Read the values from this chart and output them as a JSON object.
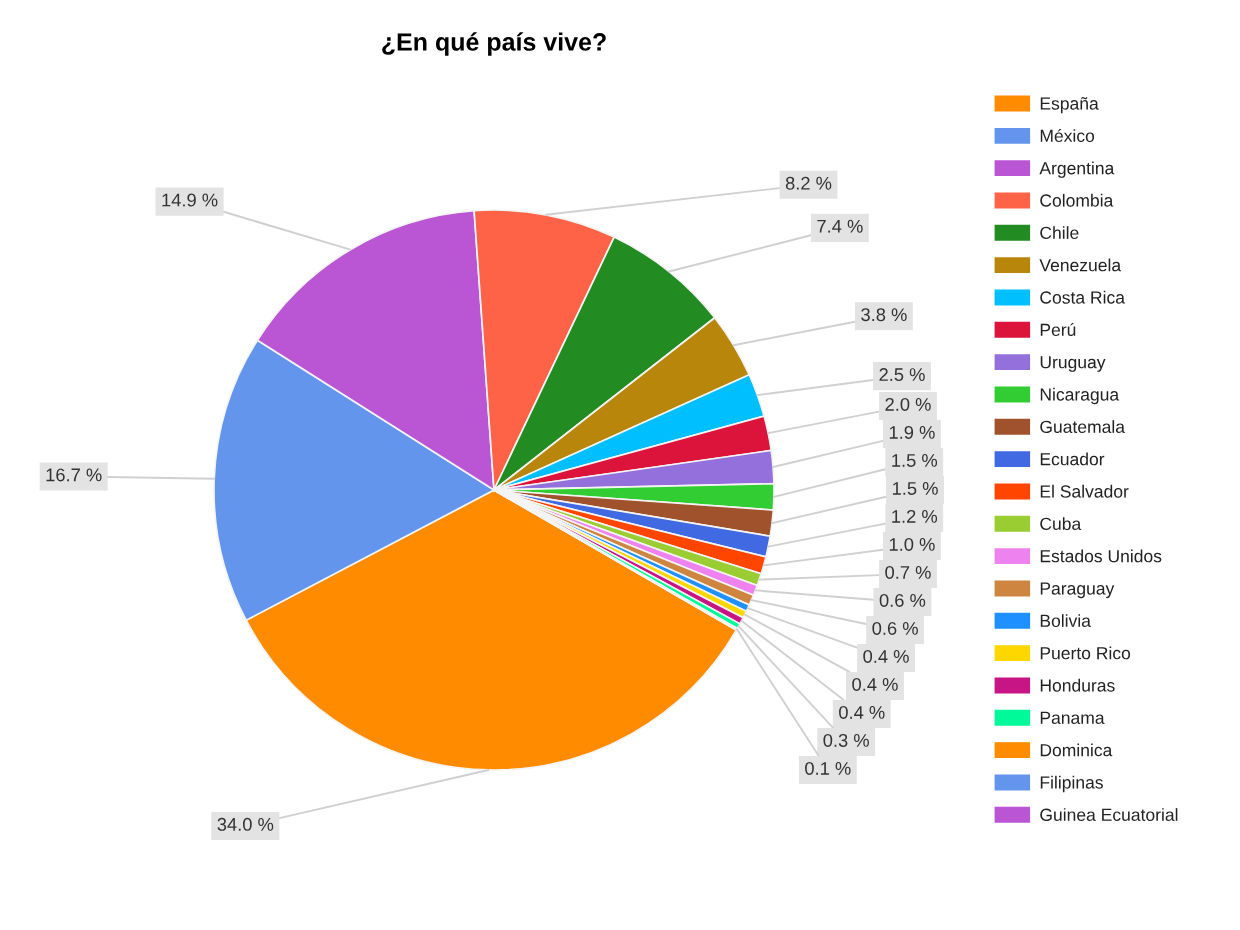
{
  "chart_data": {
    "type": "pie",
    "title": "¿En qué país vive?",
    "categories": [
      "España",
      "México",
      "Argentina",
      "Colombia",
      "Chile",
      "Venezuela",
      "Costa Rica",
      "Perú",
      "Uruguay",
      "Nicaragua",
      "Guatemala",
      "Ecuador",
      "El Salvador",
      "Cuba",
      "Estados Unidos",
      "Paraguay",
      "Bolivia",
      "Puerto Rico",
      "Honduras",
      "Panama",
      "Dominica",
      "Filipinas",
      "Guinea Ecuatorial"
    ],
    "values": [
      34.0,
      16.7,
      14.9,
      8.2,
      7.4,
      3.8,
      2.5,
      2.0,
      1.9,
      1.5,
      1.5,
      1.2,
      1.0,
      0.7,
      0.6,
      0.6,
      0.4,
      0.4,
      0.4,
      0.3,
      0.1,
      0,
      0
    ],
    "colors": [
      "#ff8c00",
      "#6495ed",
      "#ba55d3",
      "#ff6347",
      "#228b22",
      "#b8860b",
      "#00bfff",
      "#dc143c",
      "#9370db",
      "#32cd32",
      "#a0522d",
      "#4169e1",
      "#ff4500",
      "#9acd32",
      "#ee82ee",
      "#cd853f",
      "#1e90ff",
      "#ffd700",
      "#c71585",
      "#00fa9a",
      "#ff8c00",
      "#6495ed",
      "#ba55d3"
    ],
    "value_labels": [
      "34.0 %",
      "16.7 %",
      "14.9 %",
      "8.2 %",
      "7.4 %",
      "3.8 %",
      "2.5 %",
      "2.0 %",
      "1.9 %",
      "1.5 %",
      "1.5 %",
      "1.2 %",
      "1.0 %",
      "0.7 %",
      "0.6 %",
      "0.6 %",
      "0.4 %",
      "0.4 %",
      "0.4 %",
      "0.3 %",
      "0.1 %",
      null,
      null
    ],
    "legend": "right"
  }
}
